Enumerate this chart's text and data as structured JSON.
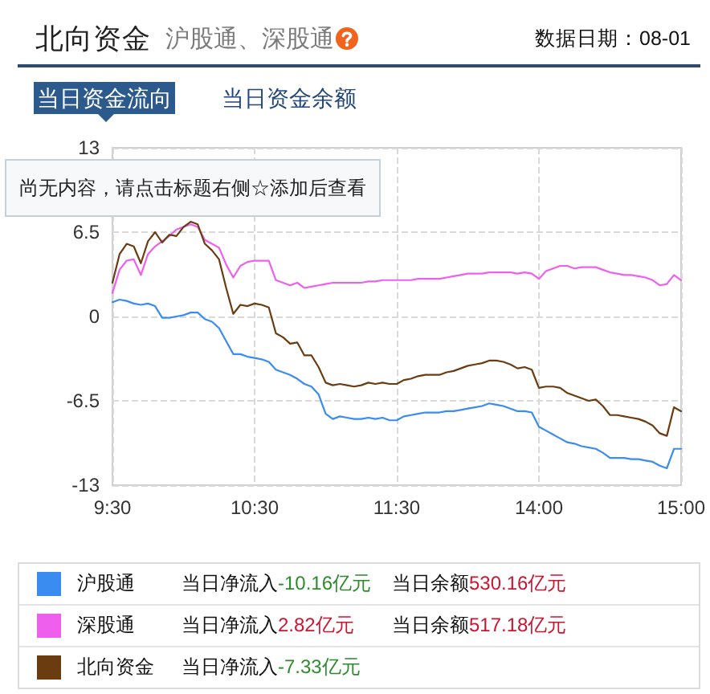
{
  "chart_data": {
    "type": "line",
    "title": "北向资金",
    "subtitle": "沪股通、深股通",
    "annotations": [
      "数据日期：08-01",
      "当日资金流向",
      "当日资金余额",
      "尚无内容，请点击标题右侧☆添加后查看",
      "当日净流入-10.16亿元",
      "当日余额530.16亿元",
      "当日净流入2.82亿元",
      "当日余额517.18亿元",
      "当日净流入-7.33亿元"
    ],
    "categories": [
      "9:30",
      null,
      null,
      null,
      null,
      null,
      null,
      null,
      null,
      null,
      null,
      null,
      null,
      null,
      null,
      null,
      null,
      null,
      null,
      null,
      "10:30",
      null,
      null,
      null,
      null,
      null,
      null,
      null,
      null,
      null,
      null,
      null,
      null,
      null,
      null,
      null,
      null,
      null,
      null,
      null,
      "11:30",
      null,
      null,
      null,
      null,
      null,
      null,
      null,
      null,
      null,
      null,
      null,
      null,
      null,
      null,
      null,
      null,
      null,
      null,
      null,
      "14:00",
      null,
      null,
      null,
      null,
      null,
      null,
      null,
      null,
      null,
      null,
      null,
      null,
      null,
      null,
      null,
      null,
      null,
      null,
      null,
      "15:00"
    ],
    "ylim": [
      -13,
      13
    ],
    "yticks": [
      -13,
      -6.5,
      0,
      6.5,
      13
    ],
    "grid": true,
    "legend": "bottom",
    "marker": "none",
    "line_style": "solid",
    "series": [
      {
        "name": "沪股通",
        "color": "#3a8cf0",
        "values": [
          1.1,
          1.3,
          1.2,
          1.0,
          0.9,
          1.0,
          0.8,
          -0.1,
          -0.1,
          0.0,
          0.1,
          0.3,
          0.3,
          -0.2,
          -0.4,
          -0.9,
          -1.9,
          -2.9,
          -2.9,
          -3.1,
          -3.2,
          -3.3,
          -3.5,
          -4.1,
          -4.3,
          -4.5,
          -4.8,
          -5.2,
          -5.4,
          -6.0,
          -7.5,
          -7.9,
          -7.7,
          -7.8,
          -7.9,
          -7.9,
          -7.8,
          -7.9,
          -7.8,
          -8.0,
          -8.0,
          -7.7,
          -7.6,
          -7.5,
          -7.4,
          -7.4,
          -7.4,
          -7.3,
          -7.3,
          -7.2,
          -7.1,
          -7.0,
          -6.9,
          -6.7,
          -6.8,
          -6.9,
          -7.1,
          -7.3,
          -7.3,
          -7.4,
          -8.5,
          -8.8,
          -9.1,
          -9.4,
          -9.7,
          -9.8,
          -10.0,
          -10.1,
          -10.2,
          -10.5,
          -10.9,
          -10.9,
          -10.9,
          -11.0,
          -11.0,
          -11.1,
          -11.2,
          -11.5,
          -11.7,
          -10.2,
          -10.2
        ]
      },
      {
        "name": "深股通",
        "color": "#ee5fee",
        "values": [
          1.8,
          3.6,
          4.3,
          4.4,
          3.2,
          4.8,
          5.4,
          5.8,
          6.2,
          6.7,
          6.9,
          7.1,
          6.9,
          5.9,
          5.6,
          5.3,
          4.0,
          3.0,
          3.9,
          4.2,
          4.3,
          4.3,
          4.3,
          2.8,
          2.6,
          2.4,
          2.6,
          2.2,
          2.3,
          2.4,
          2.5,
          2.6,
          2.6,
          2.6,
          2.6,
          2.6,
          2.7,
          2.7,
          2.8,
          2.8,
          2.8,
          2.8,
          2.8,
          2.9,
          2.9,
          2.9,
          2.9,
          3.0,
          3.1,
          3.2,
          3.3,
          3.3,
          3.3,
          3.4,
          3.4,
          3.4,
          3.4,
          3.3,
          3.4,
          3.3,
          2.9,
          3.5,
          3.7,
          3.9,
          3.9,
          3.7,
          3.8,
          3.8,
          3.8,
          3.6,
          3.4,
          3.3,
          3.2,
          3.2,
          3.1,
          3.0,
          2.8,
          2.4,
          2.5,
          3.2,
          2.8
        ]
      },
      {
        "name": "北向资金",
        "color": "#6b3c10",
        "values": [
          2.6,
          4.8,
          5.6,
          5.4,
          4.1,
          5.8,
          6.5,
          5.7,
          6.3,
          6.2,
          6.9,
          7.3,
          7.1,
          5.6,
          5.1,
          4.4,
          2.2,
          0.2,
          0.9,
          0.8,
          1.0,
          0.9,
          0.7,
          -1.3,
          -1.6,
          -2.1,
          -2.0,
          -3.0,
          -3.0,
          -3.9,
          -5.1,
          -5.3,
          -5.2,
          -5.3,
          -5.4,
          -5.3,
          -5.1,
          -5.2,
          -5.1,
          -5.2,
          -5.2,
          -4.9,
          -4.8,
          -4.6,
          -4.5,
          -4.5,
          -4.5,
          -4.3,
          -4.2,
          -4.0,
          -3.8,
          -3.7,
          -3.6,
          -3.4,
          -3.4,
          -3.5,
          -3.7,
          -4.0,
          -3.9,
          -4.1,
          -5.5,
          -5.4,
          -5.4,
          -5.5,
          -5.9,
          -6.1,
          -6.3,
          -6.5,
          -6.4,
          -6.9,
          -7.6,
          -7.6,
          -7.7,
          -7.8,
          -7.9,
          -8.1,
          -8.4,
          -9.0,
          -9.2,
          -7.0,
          -7.3
        ]
      }
    ]
  }
}
